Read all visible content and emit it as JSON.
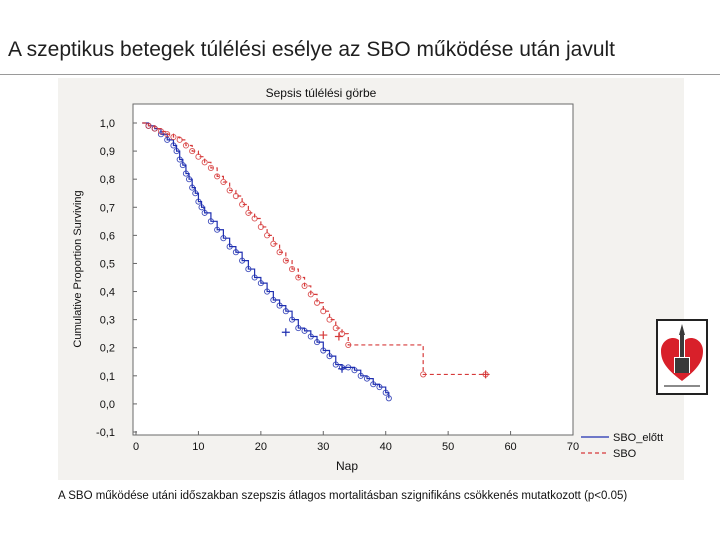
{
  "slide_title": "A szeptikus betegek túlélési esélye az SBO működése után javult",
  "footnote": "A SBO működése utáni időszakban szepszis átlagos mortalitásban szignifikáns csökkenés mutatkozott (p<0.05)",
  "logo": {
    "description": "hospital-logo-icon",
    "colors": [
      "#d8202a",
      "#3a3a3a",
      "#ffffff"
    ]
  },
  "chart_data": {
    "type": "line",
    "chart_subtype": "kaplan-meier",
    "title": "Sepsis túlélési görbe",
    "xlabel": "Nap",
    "ylabel": "Cumulative Proportion Surviving",
    "xlim": [
      0,
      70
    ],
    "ylim": [
      -0.1,
      1.0
    ],
    "x_ticks": [
      "0",
      "10",
      "20",
      "30",
      "40",
      "50",
      "60",
      "70"
    ],
    "y_ticks": [
      "1,0",
      "0,9",
      "0,8",
      "0,7",
      "0,6",
      "0,5",
      "0,4",
      "0,3",
      "0,2",
      "0,1",
      "0,0",
      "-0,1"
    ],
    "grid": false,
    "legend_position": "bottom-right",
    "series": [
      {
        "name": "SBO_előtt",
        "color": "#1f2fb0",
        "line_style": "solid",
        "x": [
          1,
          2,
          3,
          4,
          5,
          6,
          6.5,
          7,
          7.5,
          8,
          8.5,
          9,
          9.5,
          10,
          10.5,
          11,
          12,
          13,
          14,
          15,
          16,
          17,
          18,
          19,
          20,
          21,
          22,
          23,
          24,
          25,
          26,
          27,
          28,
          29,
          30,
          31,
          32,
          33,
          34,
          35,
          36,
          37,
          38,
          39,
          40,
          40.5
        ],
        "y": [
          1.0,
          0.99,
          0.98,
          0.96,
          0.94,
          0.92,
          0.9,
          0.87,
          0.85,
          0.82,
          0.8,
          0.77,
          0.75,
          0.72,
          0.7,
          0.68,
          0.65,
          0.62,
          0.59,
          0.56,
          0.54,
          0.51,
          0.48,
          0.45,
          0.43,
          0.4,
          0.37,
          0.35,
          0.33,
          0.3,
          0.27,
          0.26,
          0.24,
          0.22,
          0.19,
          0.17,
          0.14,
          0.13,
          0.13,
          0.12,
          0.1,
          0.09,
          0.07,
          0.06,
          0.04,
          0.02
        ],
        "censored": [
          {
            "x": 24,
            "y": 0.255
          },
          {
            "x": 33,
            "y": 0.125
          }
        ]
      },
      {
        "name": "SBO",
        "color": "#d63a3a",
        "line_style": "dashed",
        "x": [
          1,
          2,
          3,
          4,
          5,
          6,
          7,
          8,
          9,
          10,
          11,
          12,
          13,
          14,
          15,
          16,
          17,
          18,
          19,
          20,
          21,
          22,
          23,
          24,
          25,
          26,
          27,
          28,
          29,
          30,
          31,
          32,
          33,
          34,
          46,
          56
        ],
        "y": [
          1.0,
          0.99,
          0.98,
          0.97,
          0.96,
          0.95,
          0.94,
          0.92,
          0.9,
          0.88,
          0.86,
          0.84,
          0.81,
          0.79,
          0.76,
          0.74,
          0.71,
          0.68,
          0.66,
          0.63,
          0.6,
          0.57,
          0.54,
          0.51,
          0.48,
          0.45,
          0.42,
          0.39,
          0.36,
          0.33,
          0.3,
          0.27,
          0.25,
          0.21,
          0.105,
          0.105
        ],
        "censored": [
          {
            "x": 30,
            "y": 0.245
          },
          {
            "x": 32.5,
            "y": 0.24
          },
          {
            "x": 56,
            "y": 0.105
          }
        ]
      }
    ]
  }
}
